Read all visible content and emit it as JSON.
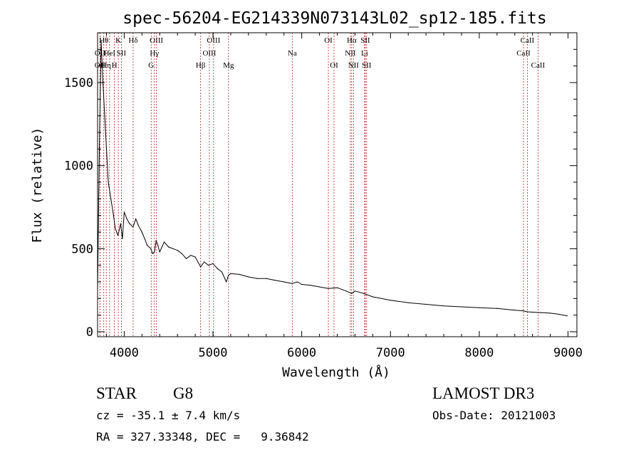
{
  "chart_data": {
    "type": "line",
    "title": "spec-56204-EG214339N073143L02_sp12-185.fits",
    "xlabel": "Wavelength (Å)",
    "ylabel": "Flux (relative)",
    "xlim": [
      3700,
      9100
    ],
    "ylim": [
      -30,
      1800
    ],
    "x_ticks": [
      4000,
      5000,
      6000,
      7000,
      8000,
      9000
    ],
    "x_tick_labels": [
      "4000",
      "5000",
      "6000",
      "7000",
      "8000",
      "9000"
    ],
    "y_ticks": [
      0,
      500,
      1000,
      1500
    ],
    "y_tick_labels": [
      "0",
      "500",
      "1000",
      "1500"
    ],
    "grid": false,
    "series": [
      {
        "name": "spectrum",
        "x": [
          3700,
          3720,
          3740,
          3760,
          3780,
          3800,
          3820,
          3850,
          3880,
          3900,
          3930,
          3960,
          3980,
          4000,
          4030,
          4060,
          4100,
          4130,
          4160,
          4200,
          4230,
          4260,
          4300,
          4320,
          4340,
          4360,
          4380,
          4400,
          4450,
          4500,
          4550,
          4600,
          4650,
          4700,
          4750,
          4800,
          4861,
          4900,
          4950,
          5000,
          5050,
          5100,
          5150,
          5175,
          5200,
          5300,
          5400,
          5500,
          5600,
          5700,
          5800,
          5890,
          5950,
          6000,
          6100,
          6200,
          6300,
          6400,
          6500,
          6563,
          6600,
          6700,
          6800,
          7000,
          7200,
          7400,
          7600,
          7800,
          8000,
          8200,
          8400,
          8500,
          8542,
          8600,
          8700,
          8800,
          8900,
          8990
        ],
        "y": [
          250,
          1100,
          1750,
          1500,
          1300,
          1100,
          900,
          800,
          700,
          620,
          580,
          650,
          560,
          720,
          680,
          650,
          630,
          680,
          640,
          600,
          560,
          520,
          500,
          470,
          480,
          550,
          520,
          480,
          540,
          510,
          500,
          490,
          470,
          440,
          460,
          450,
          390,
          420,
          400,
          410,
          380,
          360,
          300,
          340,
          350,
          345,
          330,
          320,
          320,
          310,
          300,
          290,
          300,
          285,
          280,
          270,
          260,
          265,
          245,
          230,
          245,
          230,
          210,
          190,
          175,
          165,
          155,
          150,
          145,
          140,
          130,
          125,
          120,
          118,
          115,
          112,
          105,
          95
        ]
      }
    ],
    "spectral_lines": [
      {
        "x": 3727,
        "label": "OII",
        "row": 2
      },
      {
        "x": 3727,
        "label": "OII",
        "row": 3
      },
      {
        "x": 3770,
        "label": "Hθ",
        "row": 1
      },
      {
        "x": 3798,
        "label": "Hη",
        "row": 3
      },
      {
        "x": 3835,
        "label": "HeI",
        "row": 2
      },
      {
        "x": 3889,
        "label": "H",
        "row": 3
      },
      {
        "x": 3934,
        "label": "K",
        "row": 1
      },
      {
        "x": 3968,
        "label": "SII",
        "row": 2
      },
      {
        "x": 4101,
        "label": "Hδ",
        "row": 1
      },
      {
        "x": 4304,
        "label": "G",
        "row": 3
      },
      {
        "x": 4340,
        "label": "Hγ",
        "row": 2
      },
      {
        "x": 4363,
        "label": "OIII",
        "row": 1
      },
      {
        "x": 4861,
        "label": "Hβ",
        "row": 3
      },
      {
        "x": 4959,
        "label": "OIII",
        "row": 2
      },
      {
        "x": 5007,
        "label": "OIII",
        "row": 1
      },
      {
        "x": 5175,
        "label": "Mg",
        "row": 3
      },
      {
        "x": 5893,
        "label": "Na",
        "row": 2
      },
      {
        "x": 6300,
        "label": "OI",
        "row": 1
      },
      {
        "x": 6364,
        "label": "OI",
        "row": 3
      },
      {
        "x": 6548,
        "label": "NII",
        "row": 2
      },
      {
        "x": 6563,
        "label": "Hα",
        "row": 1
      },
      {
        "x": 6583,
        "label": "NII",
        "row": 3
      },
      {
        "x": 6708,
        "label": "Li",
        "row": 2
      },
      {
        "x": 6716,
        "label": "SII",
        "row": 1
      },
      {
        "x": 6731,
        "label": "SII",
        "row": 3
      },
      {
        "x": 8498,
        "label": "CaII",
        "row": 2
      },
      {
        "x": 8542,
        "label": "CaII",
        "row": 1
      },
      {
        "x": 8662,
        "label": "CaII",
        "row": 3
      }
    ]
  },
  "info": {
    "classification": "STAR",
    "subclass": "G8",
    "survey": "LAMOST DR3",
    "cz": "cz = -35.1 ± 7.4 km/s",
    "obs_date": "Obs-Date: 20121003",
    "radec": "RA = 327.33348, DEC =   9.36842"
  },
  "colors": {
    "line": "#000000",
    "spectral_line": "#b22222",
    "axes": "#000000"
  }
}
